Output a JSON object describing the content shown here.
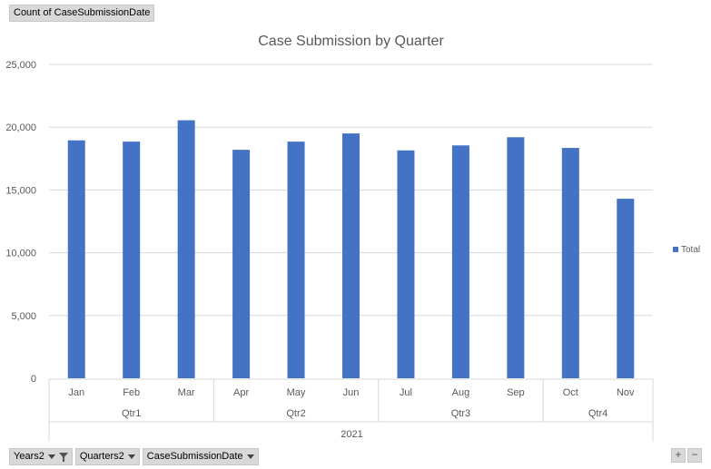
{
  "value_field": "Count of CaseSubmissionDate",
  "axis_fields": [
    {
      "label": "Years2",
      "icon": "filter-icon"
    },
    {
      "label": "Quarters2",
      "icon": "dropdown-arrow-icon"
    },
    {
      "label": "CaseSubmissionDate",
      "icon": "dropdown-arrow-icon"
    }
  ],
  "zoom": {
    "plus": "+",
    "minus": "−"
  },
  "chart_data": {
    "type": "bar",
    "title": "Case Submission by Quarter",
    "categories": [
      "Jan",
      "Feb",
      "Mar",
      "Apr",
      "May",
      "Jun",
      "Jul",
      "Aug",
      "Sep",
      "Oct",
      "Nov"
    ],
    "quarters": [
      {
        "label": "Qtr1",
        "count": 3
      },
      {
        "label": "Qtr2",
        "count": 3
      },
      {
        "label": "Qtr3",
        "count": 3
      },
      {
        "label": "Qtr4",
        "count": 2
      }
    ],
    "year": "2021",
    "series": [
      {
        "name": "Total",
        "color": "#4472c4",
        "values": [
          18950,
          18850,
          20550,
          18200,
          18850,
          19500,
          18150,
          18550,
          19200,
          18350,
          14300
        ]
      }
    ],
    "ylim": [
      0,
      25000
    ],
    "yticks": [
      "0",
      "5,000",
      "10,000",
      "15,000",
      "20,000",
      "25,000"
    ],
    "ytick_values": [
      0,
      5000,
      10000,
      15000,
      20000,
      25000
    ],
    "grid": true,
    "legend": "right"
  }
}
